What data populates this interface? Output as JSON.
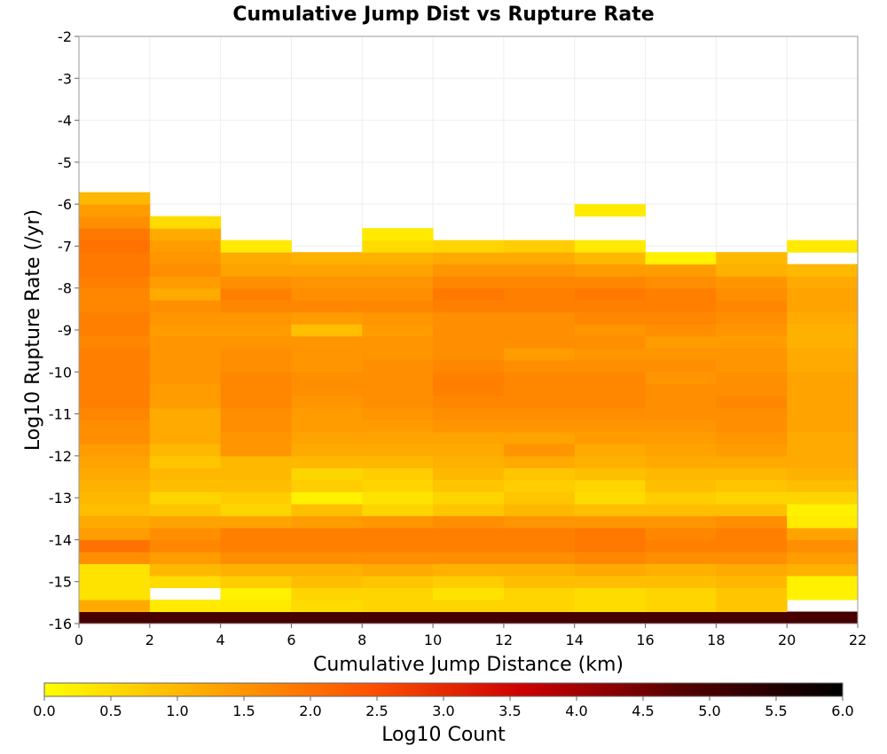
{
  "chart_data": {
    "type": "heatmap",
    "title": "Cumulative Jump Dist vs Rupture Rate",
    "xlabel": "Cumulative Jump Distance (km)",
    "ylabel": "Log10 Rupture Rate (/yr)",
    "xlim": [
      0,
      22
    ],
    "ylim": [
      -16,
      -2
    ],
    "x_ticks": [
      "0",
      "2",
      "4",
      "6",
      "8",
      "10",
      "12",
      "14",
      "16",
      "18",
      "20",
      "22"
    ],
    "y_ticks": [
      "-2",
      "-3",
      "-4",
      "-5",
      "-6",
      "-7",
      "-8",
      "-9",
      "-10",
      "-11",
      "-12",
      "-13",
      "-14",
      "-15",
      "-16"
    ],
    "x_bin_edges": [
      0,
      2,
      4,
      6,
      8,
      10,
      12,
      14,
      16,
      18,
      20,
      22
    ],
    "y_bin_size": 0.2857,
    "colorbar": {
      "label": "Log10 Count",
      "range": [
        0,
        6
      ],
      "ticks": [
        "0.0",
        "0.5",
        "1.0",
        "1.5",
        "2.0",
        "2.5",
        "3.0",
        "3.5",
        "4.0",
        "4.5",
        "5.0",
        "5.5",
        "6.0"
      ],
      "colormap": [
        "#ffff00",
        "#ffaa00",
        "#ff5500",
        "#cc0000",
        "#550000",
        "#000000"
      ]
    },
    "columns": [
      {
        "x": [
          0,
          2
        ],
        "y_min": -16.0,
        "log10_counts": [
          5.0,
          1.2,
          0.4,
          0.4,
          0.4,
          1.6,
          2.0,
          1.4,
          1.2,
          0.9,
          1.0,
          1.1,
          1.2,
          1.3,
          1.4,
          1.6,
          1.6,
          1.7,
          1.8,
          1.8,
          1.8,
          1.8,
          1.8,
          1.7,
          1.8,
          1.8,
          1.7,
          1.7,
          1.8,
          1.9,
          1.9,
          2.0,
          1.9,
          1.6,
          1.4,
          1.0
        ]
      },
      {
        "x": [
          2,
          4
        ],
        "y_min": -16.0,
        "log10_counts": [
          5.0,
          0.3,
          null,
          0.5,
          1.0,
          1.4,
          1.7,
          1.6,
          1.3,
          0.8,
          0.6,
          0.9,
          1.0,
          0.8,
          1.0,
          1.2,
          1.2,
          1.2,
          1.4,
          1.4,
          1.5,
          1.5,
          1.5,
          1.5,
          1.4,
          1.5,
          1.6,
          1.2,
          1.4,
          1.6,
          1.5,
          1.4,
          1.2,
          0.5
        ]
      },
      {
        "x": [
          4,
          6
        ],
        "y_min": -16.0,
        "log10_counts": [
          5.0,
          0.3,
          0.2,
          0.7,
          1.1,
          1.6,
          1.8,
          1.8,
          1.3,
          0.6,
          0.7,
          0.9,
          1.0,
          1.0,
          1.5,
          1.5,
          1.6,
          1.6,
          1.7,
          1.7,
          1.7,
          1.6,
          1.6,
          1.5,
          1.4,
          1.5,
          1.7,
          1.8,
          1.6,
          1.3,
          1.2,
          0.3
        ]
      },
      {
        "x": [
          6,
          8
        ],
        "y_min": -16.0,
        "log10_counts": [
          5.0,
          0.5,
          0.6,
          0.9,
          1.1,
          1.6,
          1.8,
          1.8,
          1.4,
          0.9,
          0.2,
          0.7,
          0.6,
          1.0,
          1.2,
          1.3,
          1.4,
          1.4,
          1.5,
          1.6,
          1.6,
          1.5,
          1.5,
          1.5,
          0.9,
          1.4,
          1.7,
          1.6,
          1.5,
          1.3,
          1.1
        ]
      },
      {
        "x": [
          8,
          10
        ],
        "y_min": -16.0,
        "log10_counts": [
          5.0,
          0.6,
          0.6,
          0.8,
          1.2,
          1.6,
          1.8,
          1.8,
          1.5,
          0.6,
          0.4,
          0.6,
          0.7,
          1.0,
          1.2,
          1.3,
          1.4,
          1.5,
          1.6,
          1.6,
          1.6,
          1.6,
          1.5,
          1.5,
          1.4,
          1.5,
          1.7,
          1.6,
          1.5,
          1.3,
          1.1,
          0.5,
          0.3
        ]
      },
      {
        "x": [
          10,
          12
        ],
        "y_min": -16.0,
        "log10_counts": [
          5.0,
          0.6,
          0.4,
          0.7,
          1.1,
          1.6,
          1.8,
          1.8,
          1.6,
          0.8,
          0.6,
          0.8,
          1.0,
          1.1,
          1.2,
          1.3,
          1.5,
          1.6,
          1.7,
          1.8,
          1.8,
          1.7,
          1.6,
          1.6,
          1.6,
          1.6,
          1.8,
          1.9,
          1.7,
          1.5,
          1.2,
          0.6
        ]
      },
      {
        "x": [
          12,
          14
        ],
        "y_min": -16.0,
        "log10_counts": [
          5.0,
          0.6,
          0.6,
          0.9,
          1.1,
          1.6,
          1.8,
          1.8,
          1.5,
          1.0,
          0.8,
          0.7,
          0.8,
          1.2,
          1.5,
          1.3,
          1.5,
          1.6,
          1.7,
          1.7,
          1.7,
          1.6,
          1.4,
          1.6,
          1.6,
          1.6,
          1.8,
          1.8,
          1.7,
          1.5,
          1.2,
          0.7
        ]
      },
      {
        "x": [
          14,
          16
        ],
        "y_min": -16.0,
        "log10_counts": [
          5.0,
          0.5,
          0.5,
          0.9,
          1.2,
          1.7,
          1.9,
          1.9,
          1.5,
          0.9,
          0.5,
          0.6,
          0.9,
          1.1,
          1.2,
          1.4,
          1.5,
          1.6,
          1.7,
          1.7,
          1.7,
          1.6,
          1.5,
          1.6,
          1.5,
          1.7,
          1.8,
          1.9,
          1.7,
          1.4,
          1.0,
          0.3,
          null,
          null,
          0.3
        ]
      },
      {
        "x": [
          16,
          18
        ],
        "y_min": -16.0,
        "log10_counts": [
          5.0,
          0.6,
          0.6,
          0.9,
          1.1,
          1.6,
          1.8,
          1.7,
          1.5,
          0.9,
          0.7,
          0.9,
          1.0,
          1.2,
          1.3,
          1.4,
          1.5,
          1.6,
          1.6,
          1.6,
          1.5,
          1.6,
          1.5,
          1.4,
          1.6,
          1.7,
          1.8,
          1.8,
          1.6,
          1.4,
          0.2
        ]
      },
      {
        "x": [
          18,
          20
        ],
        "y_min": -16.0,
        "log10_counts": [
          5.0,
          0.8,
          0.8,
          1.0,
          1.2,
          1.6,
          1.8,
          1.8,
          1.6,
          0.9,
          0.6,
          0.8,
          1.0,
          1.2,
          1.4,
          1.5,
          1.6,
          1.6,
          1.7,
          1.6,
          1.6,
          1.5,
          1.5,
          1.4,
          1.5,
          1.6,
          1.7,
          1.6,
          1.5,
          1.1,
          1.0
        ]
      },
      {
        "x": [
          20,
          22
        ],
        "y_min": -16.0,
        "log10_counts": [
          5.0,
          null,
          0.2,
          0.2,
          1.1,
          1.4,
          1.6,
          1.3,
          0.3,
          0.2,
          0.6,
          0.9,
          1.1,
          1.2,
          1.2,
          1.2,
          1.3,
          1.3,
          1.3,
          1.3,
          1.3,
          1.2,
          1.2,
          1.1,
          1.1,
          1.2,
          1.3,
          1.3,
          1.2,
          1.0,
          null,
          0.3
        ]
      }
    ]
  }
}
